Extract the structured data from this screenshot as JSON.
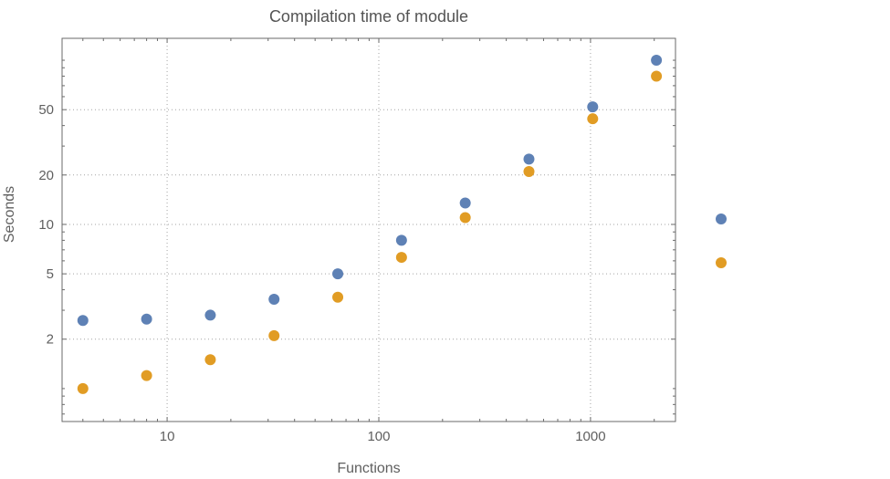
{
  "chart_data": {
    "type": "scatter",
    "title": "Compilation time of module",
    "xlabel": "Functions",
    "ylabel": "Seconds",
    "x_scale": "log",
    "y_scale": "log",
    "grid": "dotted",
    "legend_position": "right",
    "xlim": [
      3.19,
      2520
    ],
    "ylim": [
      0.63,
      136
    ],
    "x_ticks": [
      10,
      100,
      1000
    ],
    "x_tick_labels": [
      "10",
      "100",
      "1000"
    ],
    "y_ticks": [
      2,
      5,
      10,
      20,
      50
    ],
    "y_tick_labels": [
      "2",
      "5",
      "10",
      "20",
      "50"
    ],
    "x": [
      4,
      8,
      16,
      32,
      64,
      128,
      256,
      512,
      1024,
      2048
    ],
    "series": [
      {
        "name": "series-1-blue",
        "color": "#5e81b5",
        "values": [
          2.6,
          2.65,
          2.8,
          3.5,
          5.0,
          8.0,
          13.5,
          25,
          52,
          100
        ]
      },
      {
        "name": "series-2-orange",
        "color": "#e19c24",
        "values": [
          1.0,
          1.2,
          1.5,
          2.1,
          3.6,
          6.3,
          11,
          21,
          44,
          80
        ]
      }
    ]
  },
  "colors": {
    "background": "#ffffff",
    "frame": "#6a6a6a",
    "gridline": "#a3a3a3",
    "title_text": "#545454",
    "label_text": "#5f5f5f",
    "series1": "#5e81b5",
    "series2": "#e19c24"
  }
}
